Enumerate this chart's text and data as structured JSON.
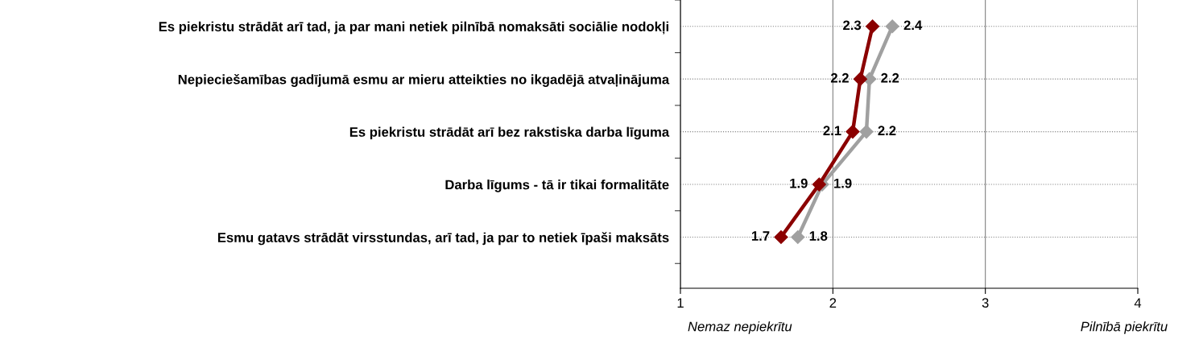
{
  "chart_data": {
    "type": "line",
    "orientation": "horizontal",
    "categories": [
      "Es piekristu strādāt arī tad, ja par mani netiek pilnībā nomaksāti sociālie nodokļi",
      "Nepieciešamības gadījumā esmu ar mieru atteikties no ikgadējā atvaļinājuma",
      "Es piekristu strādāt arī bez rakstiska darba līguma",
      "Darba līgums - tā ir tikai formalitāte",
      "Esmu gatavs strādāt virsstundas, arī tad, ja par to netiek īpaši maksāts"
    ],
    "series": [
      {
        "color": "#8b0000",
        "values": [
          2.26,
          2.18,
          2.13,
          1.91,
          1.66
        ],
        "value_labels": [
          "2.3",
          "2.2",
          "2.1",
          "1.9",
          "1.7"
        ]
      },
      {
        "color": "#a0a0a0",
        "values": [
          2.39,
          2.24,
          2.22,
          1.93,
          1.77
        ],
        "value_labels": [
          "2.4",
          "2.2",
          "2.2",
          "1.9",
          "1.8"
        ]
      }
    ],
    "xlim": [
      1,
      4
    ],
    "xticks": [
      1,
      2,
      3,
      4
    ],
    "grid": true,
    "marker": "diamond",
    "line_style": "solid",
    "legend": false,
    "annotations": [
      "Nemaz nepiekrītu",
      "Pilnībā piekrītu"
    ]
  }
}
